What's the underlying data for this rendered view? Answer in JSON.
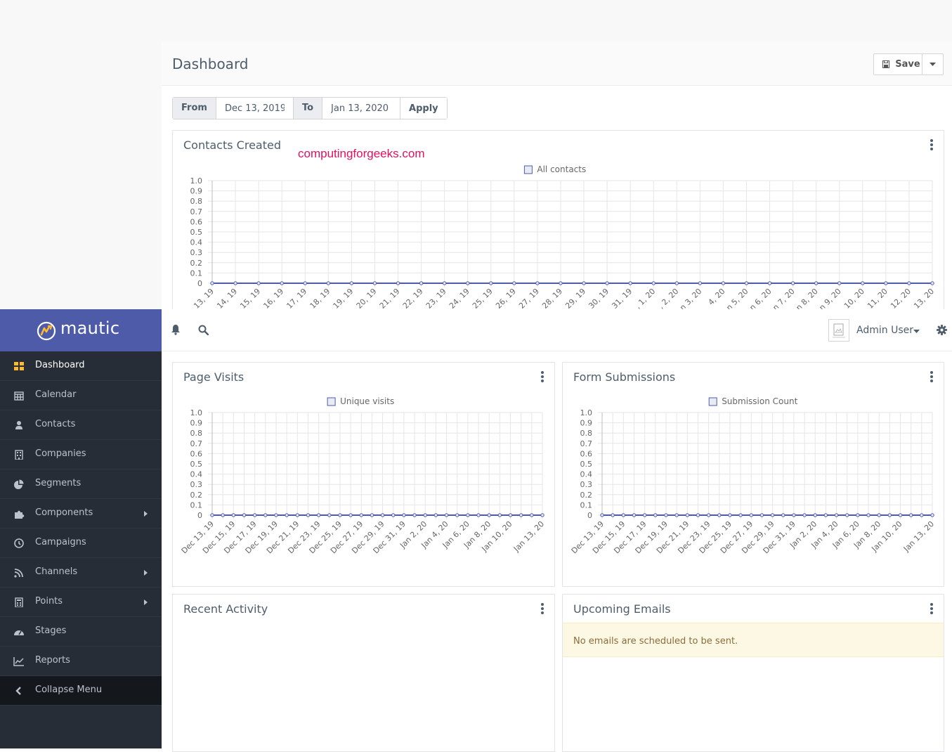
{
  "page": {
    "title": "Dashboard",
    "save_label": "Save",
    "watermark": "computingforgeeks.com"
  },
  "date_filter": {
    "from_label": "From",
    "from_value": "Dec 13, 2019",
    "to_label": "To",
    "to_value": "Jan 13, 2020",
    "apply_label": "Apply"
  },
  "brand": {
    "name": "mautic",
    "color": "#4e5ba8"
  },
  "topbar": {
    "user_name": "Admin User"
  },
  "sidebar": {
    "items": [
      {
        "label": "Dashboard",
        "icon": "grid-icon",
        "active": true
      },
      {
        "label": "Calendar",
        "icon": "calendar-icon"
      },
      {
        "label": "Contacts",
        "icon": "user-icon"
      },
      {
        "label": "Companies",
        "icon": "building-icon"
      },
      {
        "label": "Segments",
        "icon": "pie-chart-icon"
      },
      {
        "label": "Components",
        "icon": "puzzle-icon",
        "submenu": true
      },
      {
        "label": "Campaigns",
        "icon": "clock-icon"
      },
      {
        "label": "Channels",
        "icon": "rss-icon",
        "submenu": true
      },
      {
        "label": "Points",
        "icon": "calculator-icon",
        "submenu": true
      },
      {
        "label": "Stages",
        "icon": "tachometer-icon"
      },
      {
        "label": "Reports",
        "icon": "line-chart-icon"
      }
    ],
    "collapse_label": "Collapse Menu"
  },
  "widgets": {
    "contacts_created": {
      "title": "Contacts Created"
    },
    "page_visits": {
      "title": "Page Visits"
    },
    "form_submissions": {
      "title": "Form Submissions"
    },
    "recent_activity": {
      "title": "Recent Activity"
    },
    "upcoming_emails": {
      "title": "Upcoming Emails",
      "empty_message": "No emails are scheduled to be sent."
    }
  },
  "chart_data": [
    {
      "type": "line",
      "title": "Contacts Created",
      "series": [
        {
          "name": "All contacts",
          "values": [
            0,
            0,
            0,
            0,
            0,
            0,
            0,
            0,
            0,
            0,
            0,
            0,
            0,
            0,
            0,
            0,
            0,
            0,
            0,
            0,
            0,
            0,
            0,
            0,
            0,
            0,
            0,
            0,
            0,
            0,
            0,
            0
          ]
        }
      ],
      "x": [
        "13, 19",
        "14, 19",
        "15, 19",
        "16, 19",
        "17, 19",
        "18, 19",
        "19, 19",
        "20, 19",
        "21, 19",
        "22, 19",
        "23, 19",
        "24, 19",
        "25, 19",
        "26, 19",
        "27, 19",
        "28, 19",
        "29, 19",
        "30, 19",
        "31, 19",
        ", 1, 20",
        ", 2, 20",
        "n 3, 20",
        "4, 20",
        "n 5, 20",
        "n 6, 20",
        "n 7, 20",
        "n 8, 20",
        "n 9, 20",
        "10, 20",
        "11, 20",
        "12, 20",
        "13, 20"
      ],
      "yticks": [
        "1.0",
        "0.9",
        "0.8",
        "0.7",
        "0.6",
        "0.5",
        "0.4",
        "0.3",
        "0.2",
        "0.1",
        "0"
      ],
      "ylim": [
        0,
        1
      ],
      "legend": "top-center",
      "color": "#4e5ba8"
    },
    {
      "type": "line",
      "title": "Page Visits",
      "series": [
        {
          "name": "Unique visits",
          "values": [
            0,
            0,
            0,
            0,
            0,
            0,
            0,
            0,
            0,
            0,
            0,
            0,
            0,
            0,
            0,
            0,
            0,
            0,
            0,
            0,
            0,
            0,
            0,
            0,
            0,
            0,
            0,
            0,
            0,
            0,
            0,
            0
          ]
        }
      ],
      "x": [
        "Dec 13, 19",
        "",
        "Dec 15, 19",
        "",
        "Dec 17, 19",
        "",
        "Dec 19, 19",
        "",
        "Dec 21, 19",
        "",
        "Dec 23, 19",
        "",
        "Dec 25, 19",
        "",
        "Dec 27, 19",
        "",
        "Dec 29, 19",
        "",
        "Dec 31, 19",
        "",
        "Jan 2, 20",
        "",
        "Jan 4, 20",
        "",
        "Jan 6, 20",
        "",
        "Jan 8, 20",
        "",
        "Jan 10, 20",
        "",
        "",
        "Jan 13, 20"
      ],
      "yticks": [
        "1.0",
        "0.9",
        "0.8",
        "0.7",
        "0.6",
        "0.5",
        "0.4",
        "0.3",
        "0.2",
        "0.1",
        "0"
      ],
      "ylim": [
        0,
        1
      ],
      "legend": "top-center",
      "color": "#4e5ba8"
    },
    {
      "type": "line",
      "title": "Form Submissions",
      "series": [
        {
          "name": "Submission Count",
          "values": [
            0,
            0,
            0,
            0,
            0,
            0,
            0,
            0,
            0,
            0,
            0,
            0,
            0,
            0,
            0,
            0,
            0,
            0,
            0,
            0,
            0,
            0,
            0,
            0,
            0,
            0,
            0,
            0,
            0,
            0,
            0,
            0
          ]
        }
      ],
      "x": [
        "Dec 13, 19",
        "",
        "Dec 15, 19",
        "",
        "Dec 17, 19",
        "",
        "Dec 19, 19",
        "",
        "Dec 21, 19",
        "",
        "Dec 23, 19",
        "",
        "Dec 25, 19",
        "",
        "Dec 27, 19",
        "",
        "Dec 29, 19",
        "",
        "Dec 31, 19",
        "",
        "Jan 2, 20",
        "",
        "Jan 4, 20",
        "",
        "Jan 6, 20",
        "",
        "Jan 8, 20",
        "",
        "Jan 10, 20",
        "",
        "",
        "Jan 13, 20"
      ],
      "yticks": [
        "1.0",
        "0.9",
        "0.8",
        "0.7",
        "0.6",
        "0.5",
        "0.4",
        "0.3",
        "0.2",
        "0.1",
        "0"
      ],
      "ylim": [
        0,
        1
      ],
      "legend": "top-center",
      "color": "#4e5ba8"
    }
  ]
}
